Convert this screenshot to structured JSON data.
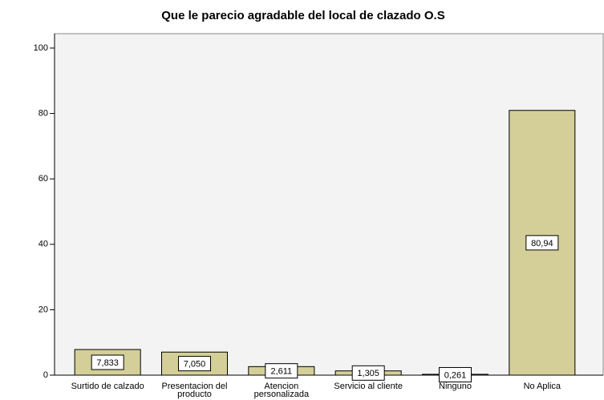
{
  "chart_data": {
    "type": "bar",
    "title": "Que le parecio agradable del local de clazado O.S",
    "categories": [
      "Surtido de calzado",
      "Presentacion del producto",
      "Atencion personalizada",
      "Servicio al cliente",
      "Ninguno",
      "No Aplica"
    ],
    "values": [
      7.833,
      7.05,
      2.611,
      1.305,
      0.261,
      80.94
    ],
    "value_labels": [
      "7,833",
      "7,050",
      "2,611",
      "1,305",
      "0,261",
      "80,94"
    ],
    "color": "#d4cf98",
    "ylim": [
      0,
      104.4
    ],
    "yticks": [
      0,
      20,
      40,
      60,
      80,
      100
    ],
    "grid": false
  }
}
